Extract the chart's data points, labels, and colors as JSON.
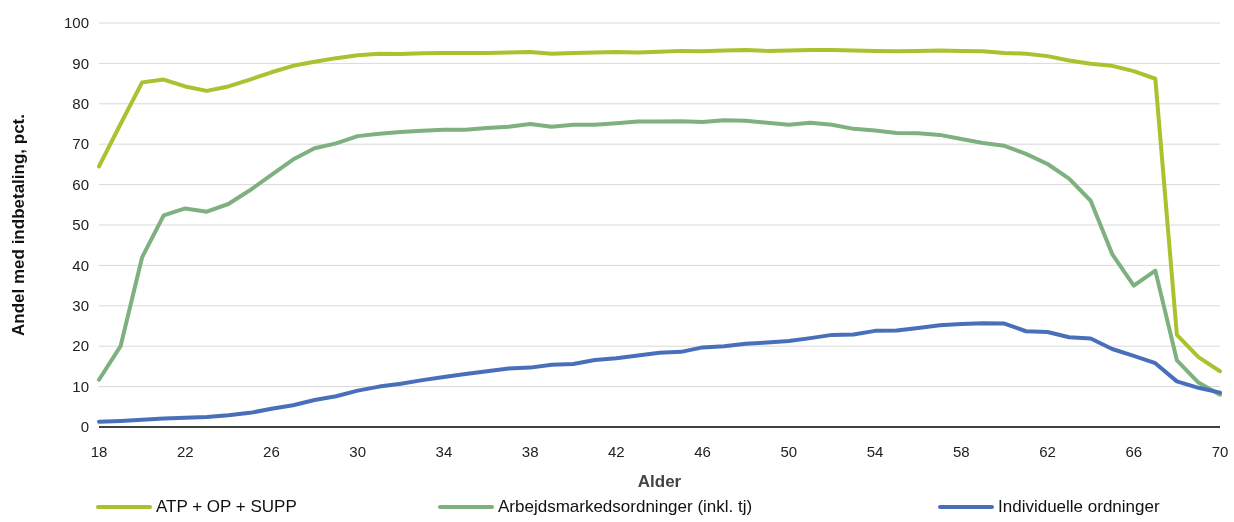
{
  "chart_data": {
    "type": "line",
    "xlabel": "Alder",
    "ylabel": "Andel med indbetaling, pct.",
    "x": [
      18,
      19,
      20,
      21,
      22,
      23,
      24,
      25,
      26,
      27,
      28,
      29,
      30,
      31,
      32,
      33,
      34,
      35,
      36,
      37,
      38,
      39,
      40,
      41,
      42,
      43,
      44,
      45,
      46,
      47,
      48,
      49,
      50,
      51,
      52,
      53,
      54,
      55,
      56,
      57,
      58,
      59,
      60,
      61,
      62,
      63,
      64,
      65,
      66,
      67,
      68,
      69,
      70
    ],
    "xlim": [
      18,
      70
    ],
    "xticks": [
      18,
      22,
      26,
      30,
      34,
      38,
      42,
      46,
      50,
      54,
      58,
      62,
      66,
      70
    ],
    "ylim": [
      0,
      100
    ],
    "yticks": [
      0,
      10,
      20,
      30,
      40,
      50,
      60,
      70,
      80,
      90,
      100
    ],
    "grid": "y",
    "legend": "bottom",
    "marker": "none",
    "line_style": "solid",
    "series": [
      {
        "name": "ATP + OP + SUPP",
        "color": "#a9c22f",
        "values": [
          64.5,
          75,
          85.3,
          86,
          84.3,
          83.2,
          84.3,
          86,
          87.8,
          89.4,
          90.4,
          91.3,
          92,
          92.4,
          92.3,
          92.5,
          92.6,
          92.6,
          92.6,
          92.7,
          92.8,
          92.4,
          92.6,
          92.7,
          92.8,
          92.7,
          92.9,
          93.1,
          93,
          93.2,
          93.3,
          93.1,
          93.2,
          93.3,
          93.3,
          93.2,
          93.1,
          93,
          93.1,
          93.2,
          93.1,
          93,
          92.6,
          92.4,
          91.8,
          90.7,
          89.9,
          89.4,
          88.1,
          86.2,
          22.8,
          17.3,
          13.8
        ]
      },
      {
        "name": "Arbejdsmarkedsordninger (inkl. tj)",
        "color": "#7fb07f",
        "values": [
          11.7,
          20,
          42,
          52.4,
          54.1,
          53.3,
          55.2,
          58.6,
          62.4,
          66.2,
          69,
          70.2,
          72,
          72.6,
          73,
          73.3,
          73.6,
          73.6,
          74,
          74.3,
          75,
          74.3,
          74.8,
          74.8,
          75.2,
          75.6,
          75.6,
          75.7,
          75.5,
          75.9,
          75.8,
          75.3,
          74.8,
          75.3,
          74.8,
          73.8,
          73.4,
          72.8,
          72.7,
          72.3,
          71.3,
          70.3,
          69.6,
          67.6,
          65.1,
          61.5,
          56,
          42.8,
          35,
          38.7,
          16.5,
          11,
          8
        ]
      },
      {
        "name": "Individuelle ordninger",
        "color": "#4a6fba",
        "values": [
          1.3,
          1.5,
          1.8,
          2.1,
          2.3,
          2.5,
          2.9,
          3.5,
          4.5,
          5.4,
          6.7,
          7.6,
          9,
          10,
          10.7,
          11.6,
          12.4,
          13.1,
          13.8,
          14.5,
          14.7,
          15.4,
          15.6,
          16.6,
          17,
          17.7,
          18.4,
          18.6,
          19.7,
          20,
          20.6,
          20.9,
          21.3,
          22,
          22.8,
          22.9,
          23.8,
          23.9,
          24.5,
          25.2,
          25.5,
          25.7,
          25.6,
          23.7,
          23.5,
          22.2,
          21.9,
          19.3,
          17.6,
          15.8,
          11.3,
          9.7,
          8.5
        ]
      }
    ]
  }
}
